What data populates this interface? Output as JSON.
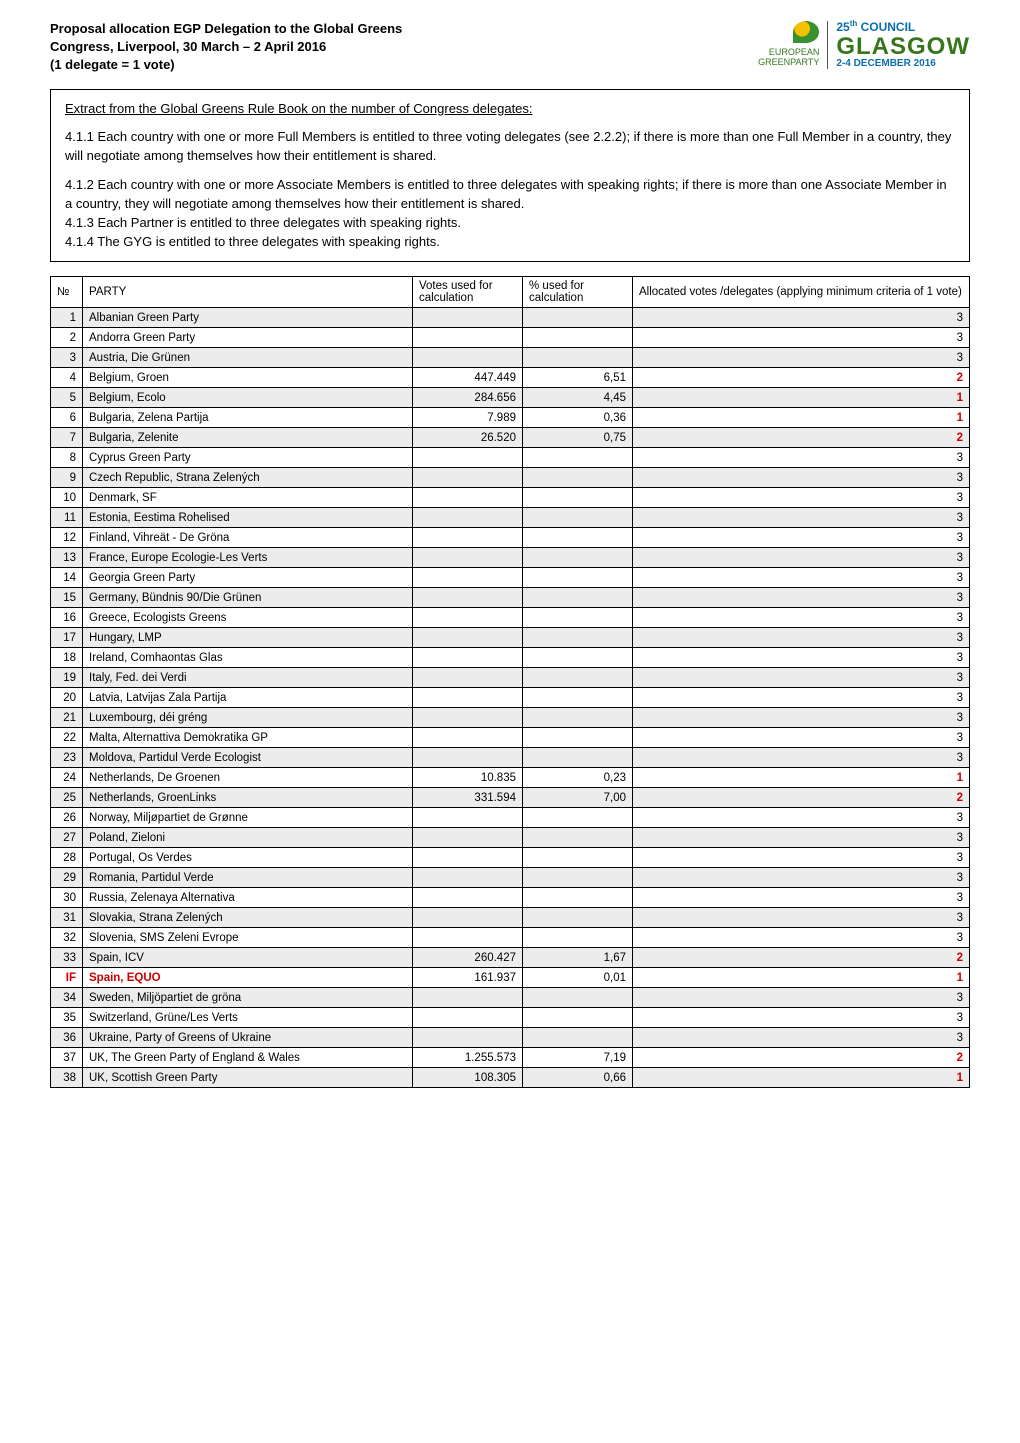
{
  "title": {
    "line1": "Proposal allocation EGP Delegation to the Global Greens",
    "line2": "Congress, Liverpool, 30 March – 2 April 2016",
    "line3": "(1 delegate = 1 vote)"
  },
  "logo": {
    "european": "EUROPEAN",
    "greenparty": "GREENPARTY",
    "council_pre": "25",
    "council_th": "th",
    "council_post": " COUNCIL",
    "glasgow": "GLASGOW",
    "dates": "2-4 DECEMBER 2016"
  },
  "rules": {
    "heading": "Extract from the Global Greens Rule Book on the number of Congress delegates:",
    "p1": "4.1.1 Each country with one or more Full Members is entitled to three voting delegates (see 2.2.2); if there is more than one Full Member in a country, they will negotiate among themselves how their entitlement is shared.",
    "p2": "4.1.2 Each country with one or more Associate Members is entitled to three delegates with speaking rights; if there is more than one Associate Member in a country, they will negotiate among themselves how their entitlement is shared.",
    "p3": "4.1.3 Each Partner is entitled to three delegates with speaking rights.",
    "p4": "4.1.4 The GYG is entitled to three delegates with speaking rights."
  },
  "table": {
    "headers": {
      "idx": "№",
      "party": "PARTY",
      "votes": "Votes used for calculation",
      "pct": "% used for calculation",
      "alloc": "Allocated votes /delegates (applying minimum criteria of 1 vote)"
    },
    "shaded_color": "#ececec",
    "red_color": "#cc0000",
    "rows": [
      {
        "idx": "1",
        "party": "Albanian Green Party",
        "votes": "",
        "pct": "",
        "alloc": "3",
        "shaded": true,
        "red": false
      },
      {
        "idx": "2",
        "party": "Andorra Green Party",
        "votes": "",
        "pct": "",
        "alloc": "3",
        "shaded": false,
        "red": false
      },
      {
        "idx": "3",
        "party": "Austria, Die Grünen",
        "votes": "",
        "pct": "",
        "alloc": "3",
        "shaded": true,
        "red": false
      },
      {
        "idx": "4",
        "party": "Belgium, Groen",
        "votes": "447.449",
        "pct": "6,51",
        "alloc": "2",
        "shaded": false,
        "red": true
      },
      {
        "idx": "5",
        "party": "Belgium, Ecolo",
        "votes": "284.656",
        "pct": "4,45",
        "alloc": "1",
        "shaded": true,
        "red": true
      },
      {
        "idx": "6",
        "party": "Bulgaria, Zelena Partija",
        "votes": "7.989",
        "pct": "0,36",
        "alloc": "1",
        "shaded": false,
        "red": true
      },
      {
        "idx": "7",
        "party": "Bulgaria, Zelenite",
        "votes": "26.520",
        "pct": "0,75",
        "alloc": "2",
        "shaded": true,
        "red": true
      },
      {
        "idx": "8",
        "party": "Cyprus Green Party",
        "votes": "",
        "pct": "",
        "alloc": "3",
        "shaded": false,
        "red": false
      },
      {
        "idx": "9",
        "party": "Czech Republic, Strana Zelených",
        "votes": "",
        "pct": "",
        "alloc": "3",
        "shaded": true,
        "red": false
      },
      {
        "idx": "10",
        "party": "Denmark, SF",
        "votes": "",
        "pct": "",
        "alloc": "3",
        "shaded": false,
        "red": false
      },
      {
        "idx": "11",
        "party": "Estonia, Eestima Rohelised",
        "votes": "",
        "pct": "",
        "alloc": "3",
        "shaded": true,
        "red": false
      },
      {
        "idx": "12",
        "party": "Finland, Vihreät - De Gröna",
        "votes": "",
        "pct": "",
        "alloc": "3",
        "shaded": false,
        "red": false
      },
      {
        "idx": "13",
        "party": "France, Europe Ecologie-Les Verts",
        "votes": "",
        "pct": "",
        "alloc": "3",
        "shaded": true,
        "red": false
      },
      {
        "idx": "14",
        "party": "Georgia Green Party",
        "votes": "",
        "pct": "",
        "alloc": "3",
        "shaded": false,
        "red": false
      },
      {
        "idx": "15",
        "party": "Germany, Bündnis 90/Die Grünen",
        "votes": "",
        "pct": "",
        "alloc": "3",
        "shaded": true,
        "red": false
      },
      {
        "idx": "16",
        "party": "Greece, Ecologists Greens",
        "votes": "",
        "pct": "",
        "alloc": "3",
        "shaded": false,
        "red": false
      },
      {
        "idx": "17",
        "party": "Hungary, LMP",
        "votes": "",
        "pct": "",
        "alloc": "3",
        "shaded": true,
        "red": false
      },
      {
        "idx": "18",
        "party": "Ireland, Comhaontas Glas",
        "votes": "",
        "pct": "",
        "alloc": "3",
        "shaded": false,
        "red": false
      },
      {
        "idx": "19",
        "party": "Italy, Fed. dei Verdi",
        "votes": "",
        "pct": "",
        "alloc": "3",
        "shaded": true,
        "red": false
      },
      {
        "idx": "20",
        "party": "Latvia, Latvijas Zala Partija",
        "votes": "",
        "pct": "",
        "alloc": "3",
        "shaded": false,
        "red": false
      },
      {
        "idx": "21",
        "party": "Luxembourg, déi gréng",
        "votes": "",
        "pct": "",
        "alloc": "3",
        "shaded": true,
        "red": false
      },
      {
        "idx": "22",
        "party": "Malta, Alternattiva Demokratika GP",
        "votes": "",
        "pct": "",
        "alloc": "3",
        "shaded": false,
        "red": false
      },
      {
        "idx": "23",
        "party": "Moldova, Partidul Verde Ecologist",
        "votes": "",
        "pct": "",
        "alloc": "3",
        "shaded": true,
        "red": false
      },
      {
        "idx": "24",
        "party": "Netherlands,  De Groenen",
        "votes": "10.835",
        "pct": "0,23",
        "alloc": "1",
        "shaded": false,
        "red": true
      },
      {
        "idx": "25",
        "party": "Netherlands, GroenLinks",
        "votes": "331.594",
        "pct": "7,00",
        "alloc": "2",
        "shaded": true,
        "red": true
      },
      {
        "idx": "26",
        "party": "Norway, Miljøpartiet de Grønne",
        "votes": "",
        "pct": "",
        "alloc": "3",
        "shaded": false,
        "red": false
      },
      {
        "idx": "27",
        "party": "Poland, Zieloni",
        "votes": "",
        "pct": "",
        "alloc": "3",
        "shaded": true,
        "red": false
      },
      {
        "idx": "28",
        "party": "Portugal, Os Verdes",
        "votes": "",
        "pct": "",
        "alloc": "3",
        "shaded": false,
        "red": false
      },
      {
        "idx": "29",
        "party": "Romania, Partidul Verde",
        "votes": "",
        "pct": "",
        "alloc": "3",
        "shaded": true,
        "red": false
      },
      {
        "idx": "30",
        "party": "Russia, Zelenaya Alternativa",
        "votes": "",
        "pct": "",
        "alloc": "3",
        "shaded": false,
        "red": false
      },
      {
        "idx": "31",
        "party": "Slovakia, Strana Zelených",
        "votes": "",
        "pct": "",
        "alloc": "3",
        "shaded": true,
        "red": false
      },
      {
        "idx": "32",
        "party": "Slovenia, SMS Zeleni Evrope",
        "votes": "",
        "pct": "",
        "alloc": "3",
        "shaded": false,
        "red": false
      },
      {
        "idx": "33",
        "party": "Spain, ICV",
        "votes": "260.427",
        "pct": "1,67",
        "alloc": "2",
        "shaded": true,
        "red": true
      },
      {
        "idx": "IF",
        "party": "Spain, EQUO",
        "votes": "161.937",
        "pct": "0,01",
        "alloc": "1",
        "shaded": false,
        "red": true,
        "idx_red": true,
        "party_red": true
      },
      {
        "idx": "34",
        "party": "Sweden, Miljöpartiet de gröna",
        "votes": "",
        "pct": "",
        "alloc": "3",
        "shaded": true,
        "red": false
      },
      {
        "idx": "35",
        "party": "Switzerland, Grüne/Les Verts",
        "votes": "",
        "pct": "",
        "alloc": "3",
        "shaded": false,
        "red": false
      },
      {
        "idx": "36",
        "party": "Ukraine, Party of Greens of Ukraine",
        "votes": "",
        "pct": "",
        "alloc": "3",
        "shaded": true,
        "red": false
      },
      {
        "idx": "37",
        "party": "UK, The Green Party of England & Wales",
        "votes": "1.255.573",
        "pct": "7,19",
        "alloc": "2",
        "shaded": false,
        "red": true
      },
      {
        "idx": "38",
        "party": "UK, Scottish Green Party",
        "votes": "108.305",
        "pct": "0,66",
        "alloc": "1",
        "shaded": true,
        "red": true
      }
    ]
  }
}
